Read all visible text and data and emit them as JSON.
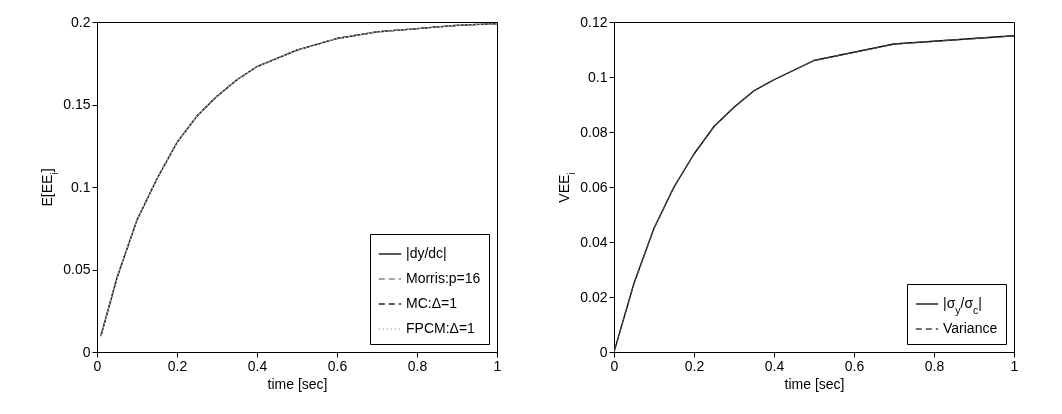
{
  "chart_data": [
    {
      "type": "line",
      "xlabel": "time [sec]",
      "ylabel": "E[EE$_{i}$]",
      "x": [
        0.01,
        0.05,
        0.1,
        0.15,
        0.2,
        0.25,
        0.3,
        0.35,
        0.4,
        0.5,
        0.6,
        0.7,
        0.8,
        0.9,
        1
      ],
      "xlim": [
        0,
        1
      ],
      "xticks": [
        0,
        0.2,
        0.4,
        0.6,
        0.8,
        1
      ],
      "ylim": [
        0,
        0.2
      ],
      "yticks": [
        0,
        0.05,
        0.1,
        0.15,
        0.2
      ],
      "grid": false,
      "legend": "bottom right",
      "series": [
        {
          "name": "|dy/dc|",
          "color": "#000000",
          "line_style": "solid",
          "values": [
            0.01,
            0.045,
            0.08,
            0.105,
            0.127,
            0.143,
            0.155,
            0.165,
            0.173,
            0.183,
            0.19,
            0.194,
            0.196,
            0.198,
            0.199
          ]
        },
        {
          "name": "Morris:p=16",
          "color": "#888888",
          "line_style": "dashed",
          "values": [
            0.01,
            0.045,
            0.08,
            0.105,
            0.127,
            0.143,
            0.155,
            0.165,
            0.173,
            0.183,
            0.19,
            0.194,
            0.196,
            0.198,
            0.199
          ]
        },
        {
          "name": "MC:Δ=1",
          "color": "#222222",
          "line_style": "dashed",
          "values": [
            0.01,
            0.045,
            0.08,
            0.105,
            0.127,
            0.143,
            0.155,
            0.165,
            0.173,
            0.183,
            0.19,
            0.194,
            0.196,
            0.198,
            0.199
          ]
        },
        {
          "name": "FPCM:Δ=1",
          "color": "#aaaaaa",
          "line_style": "dotted",
          "values": [
            0.01,
            0.045,
            0.08,
            0.105,
            0.127,
            0.143,
            0.155,
            0.165,
            0.173,
            0.183,
            0.19,
            0.194,
            0.196,
            0.198,
            0.199
          ]
        }
      ]
    },
    {
      "type": "line",
      "xlabel": "time [sec]",
      "ylabel": "VEE$_{i}$",
      "x": [
        0,
        0.05,
        0.1,
        0.15,
        0.2,
        0.25,
        0.3,
        0.35,
        0.4,
        0.5,
        0.6,
        0.7,
        0.8,
        0.9,
        1
      ],
      "xlim": [
        0,
        1
      ],
      "xticks": [
        0,
        0.2,
        0.4,
        0.6,
        0.8,
        1
      ],
      "ylim": [
        0,
        0.12
      ],
      "yticks": [
        0,
        0.02,
        0.04,
        0.06,
        0.08,
        0.1,
        0.12
      ],
      "grid": false,
      "legend": "bottom right",
      "series": [
        {
          "name": "|σ$_{y}$/σ$_{c}$|",
          "color": "#000000",
          "line_style": "solid",
          "values": [
            0,
            0.025,
            0.045,
            0.06,
            0.072,
            0.082,
            0.089,
            0.095,
            0.099,
            0.106,
            0.109,
            0.112,
            0.113,
            0.114,
            0.115
          ]
        },
        {
          "name": "Variance",
          "color": "#444444",
          "line_style": "dashed",
          "values": [
            0,
            0.025,
            0.045,
            0.06,
            0.072,
            0.082,
            0.089,
            0.095,
            0.099,
            0.106,
            0.109,
            0.112,
            0.113,
            0.114,
            0.115
          ]
        }
      ]
    }
  ]
}
